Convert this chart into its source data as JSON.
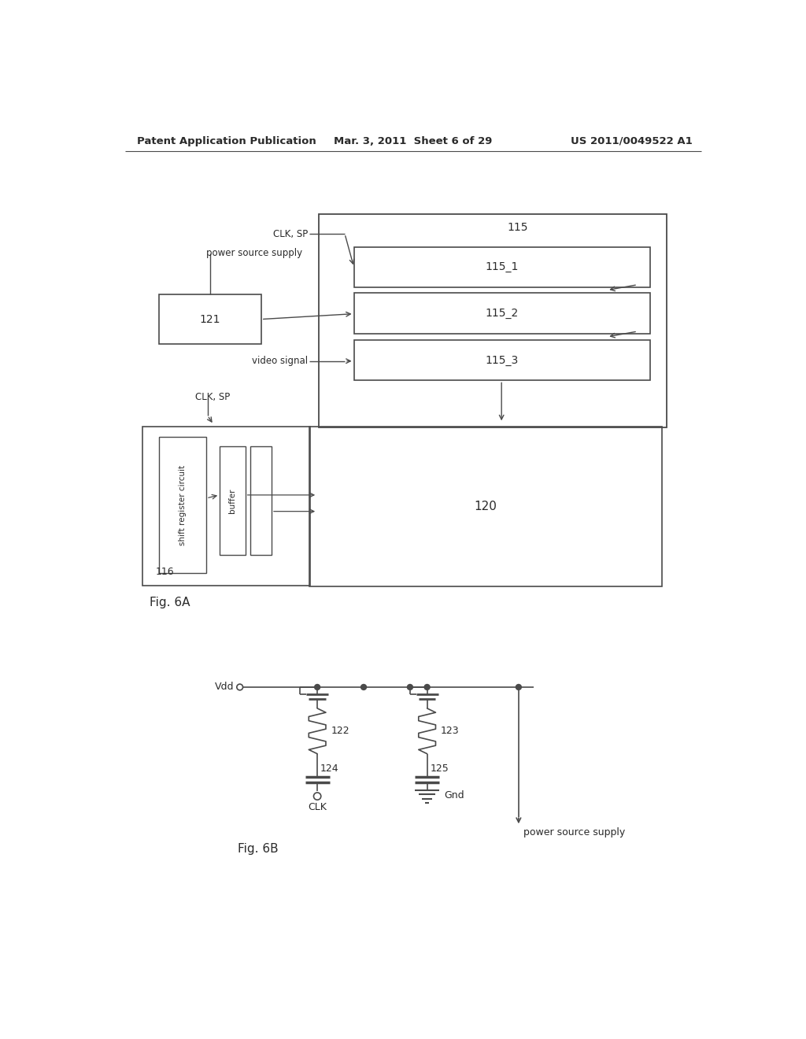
{
  "bg_color": "#ffffff",
  "line_color": "#4a4a4a",
  "text_color": "#2a2a2a",
  "header_left": "Patent Application Publication",
  "header_mid": "Mar. 3, 2011  Sheet 6 of 29",
  "header_right": "US 2011/0049522 A1",
  "fig6a_label": "Fig. 6A",
  "fig6b_label": "Fig. 6B"
}
